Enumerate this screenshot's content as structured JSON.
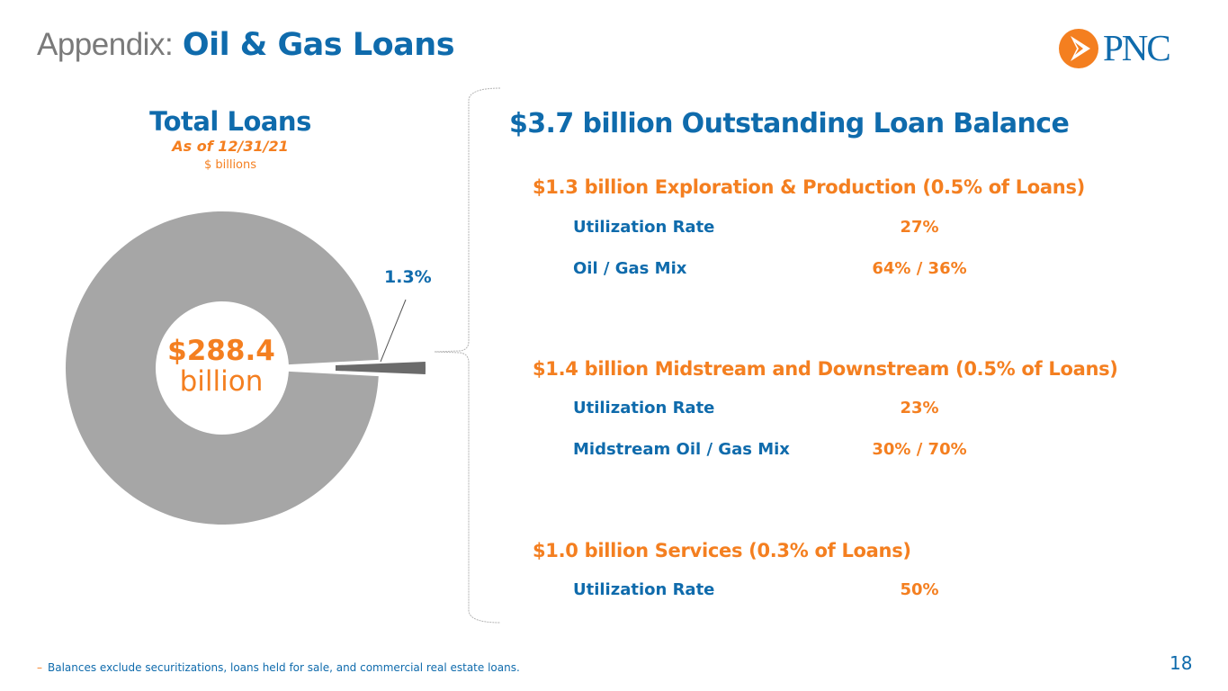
{
  "header": {
    "prefix": "Appendix:",
    "title": "Oil & Gas Loans"
  },
  "logo": {
    "text": "PNC",
    "colors": {
      "orange": "#f47f20",
      "blue": "#0f6bac"
    }
  },
  "chart_data": {
    "type": "pie",
    "title": "Total Loans",
    "subtitle": "As of 12/31/21",
    "unit": "$ billions",
    "center_value": "$288.4",
    "center_unit": "billion",
    "total": 288.4,
    "slices": [
      {
        "value": 284.7,
        "color": "#a6a6a6"
      },
      {
        "value": 3.7,
        "label": "1.3%",
        "color": "#6b6b6b"
      }
    ]
  },
  "panel": {
    "title": "$3.7 billion Outstanding Loan Balance",
    "segments": [
      {
        "title": "$1.3 billion Exploration & Production (0.5% of Loans)",
        "metrics": [
          {
            "label": "Utilization Rate",
            "value": "27%"
          },
          {
            "label": "Oil / Gas Mix",
            "value": "64% / 36%"
          }
        ]
      },
      {
        "title": "$1.4 billion Midstream and Downstream (0.5% of Loans)",
        "metrics": [
          {
            "label": "Utilization Rate",
            "value": "23%"
          },
          {
            "label": "Midstream Oil / Gas Mix",
            "value": "30% / 70%"
          }
        ]
      },
      {
        "title": "$1.0 billion Services (0.3% of Loans)",
        "metrics": [
          {
            "label": "Utilization Rate",
            "value": "50%"
          }
        ]
      }
    ]
  },
  "footnote": {
    "bullet": "–",
    "text": "Balances exclude securitizations, loans held for sale, and commercial real estate loans."
  },
  "page_number": "18"
}
